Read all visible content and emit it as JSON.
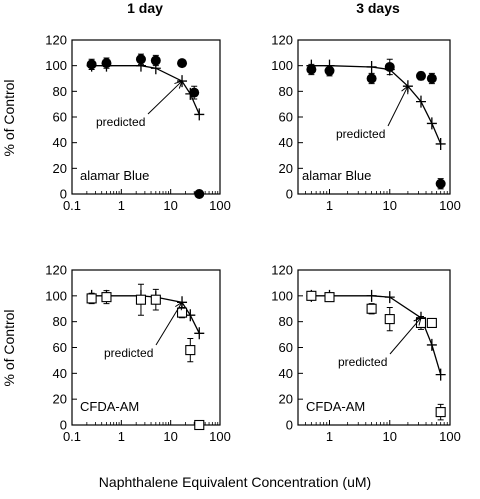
{
  "column_titles": [
    "1 day",
    "3 days"
  ],
  "ylabel": "% of Control",
  "xlabel": "Naphthalene Equivalent Concentration (uM)",
  "chart_data": [
    {
      "type": "scatter",
      "panel_label": "alamar Blue",
      "annotation": "predicted",
      "x_scale": "log",
      "xlim": [
        0.1,
        100
      ],
      "ylim": [
        0,
        120
      ],
      "x_ticks": [
        "0.1",
        "1",
        "10",
        "100"
      ],
      "y_ticks": [
        "0",
        "20",
        "40",
        "60",
        "80",
        "100",
        "120"
      ],
      "marker": "filled-circle",
      "points": [
        {
          "x": 0.25,
          "y": 101,
          "err": 4
        },
        {
          "x": 0.5,
          "y": 102,
          "err": 4
        },
        {
          "x": 2.5,
          "y": 105,
          "err": 4
        },
        {
          "x": 5,
          "y": 104,
          "err": 4
        },
        {
          "x": 17,
          "y": 102,
          "err": 0
        },
        {
          "x": 30,
          "y": 79,
          "err": 5
        },
        {
          "x": 38,
          "y": 0,
          "err": 0
        }
      ],
      "predicted": [
        {
          "x": 0.25,
          "y": 100
        },
        {
          "x": 0.5,
          "y": 100
        },
        {
          "x": 2.5,
          "y": 100
        },
        {
          "x": 5,
          "y": 98
        },
        {
          "x": 17,
          "y": 88
        },
        {
          "x": 25,
          "y": 78
        },
        {
          "x": 38,
          "y": 62
        }
      ],
      "arrow_to": {
        "x": 17,
        "y": 88
      }
    },
    {
      "type": "scatter",
      "panel_label": "alamar Blue",
      "annotation": "predicted",
      "x_scale": "log",
      "xlim": [
        0.3,
        100
      ],
      "ylim": [
        0,
        120
      ],
      "x_ticks": [
        "1",
        "10",
        "100"
      ],
      "y_ticks": [
        "0",
        "20",
        "40",
        "60",
        "80",
        "100",
        "120"
      ],
      "marker": "filled-circle",
      "points": [
        {
          "x": 0.5,
          "y": 97,
          "err": 4
        },
        {
          "x": 1,
          "y": 96,
          "err": 4
        },
        {
          "x": 5,
          "y": 90,
          "err": 4
        },
        {
          "x": 10,
          "y": 99,
          "err": 6
        },
        {
          "x": 33,
          "y": 92,
          "err": 3
        },
        {
          "x": 50,
          "y": 90,
          "err": 4
        },
        {
          "x": 70,
          "y": 8,
          "err": 4
        }
      ],
      "predicted": [
        {
          "x": 0.5,
          "y": 100
        },
        {
          "x": 1,
          "y": 100
        },
        {
          "x": 5,
          "y": 99
        },
        {
          "x": 10,
          "y": 97
        },
        {
          "x": 20,
          "y": 84
        },
        {
          "x": 33,
          "y": 72
        },
        {
          "x": 50,
          "y": 55
        },
        {
          "x": 70,
          "y": 39
        }
      ],
      "arrow_to": {
        "x": 20,
        "y": 84
      }
    },
    {
      "type": "scatter",
      "panel_label": "CFDA-AM",
      "annotation": "predicted",
      "x_scale": "log",
      "xlim": [
        0.1,
        100
      ],
      "ylim": [
        0,
        120
      ],
      "x_ticks": [
        "0.1",
        "1",
        "10",
        "100"
      ],
      "y_ticks": [
        "0",
        "20",
        "40",
        "60",
        "80",
        "100",
        "120"
      ],
      "marker": "open-square",
      "points": [
        {
          "x": 0.25,
          "y": 98,
          "err": 4
        },
        {
          "x": 0.5,
          "y": 99,
          "err": 5
        },
        {
          "x": 2.5,
          "y": 97,
          "err": 12
        },
        {
          "x": 5,
          "y": 97,
          "err": 8
        },
        {
          "x": 17,
          "y": 87,
          "err": 4
        },
        {
          "x": 25,
          "y": 58,
          "err": 9
        },
        {
          "x": 38,
          "y": 0,
          "err": 0
        }
      ],
      "predicted": [
        {
          "x": 0.25,
          "y": 100
        },
        {
          "x": 0.5,
          "y": 100
        },
        {
          "x": 2.5,
          "y": 100
        },
        {
          "x": 5,
          "y": 99
        },
        {
          "x": 17,
          "y": 95
        },
        {
          "x": 25,
          "y": 85
        },
        {
          "x": 38,
          "y": 71
        }
      ],
      "arrow_to": {
        "x": 17,
        "y": 95
      }
    },
    {
      "type": "scatter",
      "panel_label": "CFDA-AM",
      "annotation": "predicted",
      "x_scale": "log",
      "xlim": [
        0.3,
        100
      ],
      "ylim": [
        0,
        120
      ],
      "x_ticks": [
        "1",
        "10",
        "100"
      ],
      "y_ticks": [
        "0",
        "20",
        "40",
        "60",
        "80",
        "100",
        "120"
      ],
      "marker": "open-square",
      "points": [
        {
          "x": 0.5,
          "y": 100,
          "err": 3
        },
        {
          "x": 1,
          "y": 99,
          "err": 3
        },
        {
          "x": 5,
          "y": 90,
          "err": 4
        },
        {
          "x": 10,
          "y": 82,
          "err": 9
        },
        {
          "x": 33,
          "y": 79,
          "err": 5
        },
        {
          "x": 50,
          "y": 79,
          "err": 3
        },
        {
          "x": 70,
          "y": 10,
          "err": 6
        }
      ],
      "predicted": [
        {
          "x": 0.5,
          "y": 100
        },
        {
          "x": 1,
          "y": 100
        },
        {
          "x": 5,
          "y": 100
        },
        {
          "x": 10,
          "y": 99
        },
        {
          "x": 33,
          "y": 83
        },
        {
          "x": 50,
          "y": 62
        },
        {
          "x": 70,
          "y": 39
        }
      ],
      "arrow_to": {
        "x": 33,
        "y": 83
      }
    }
  ]
}
